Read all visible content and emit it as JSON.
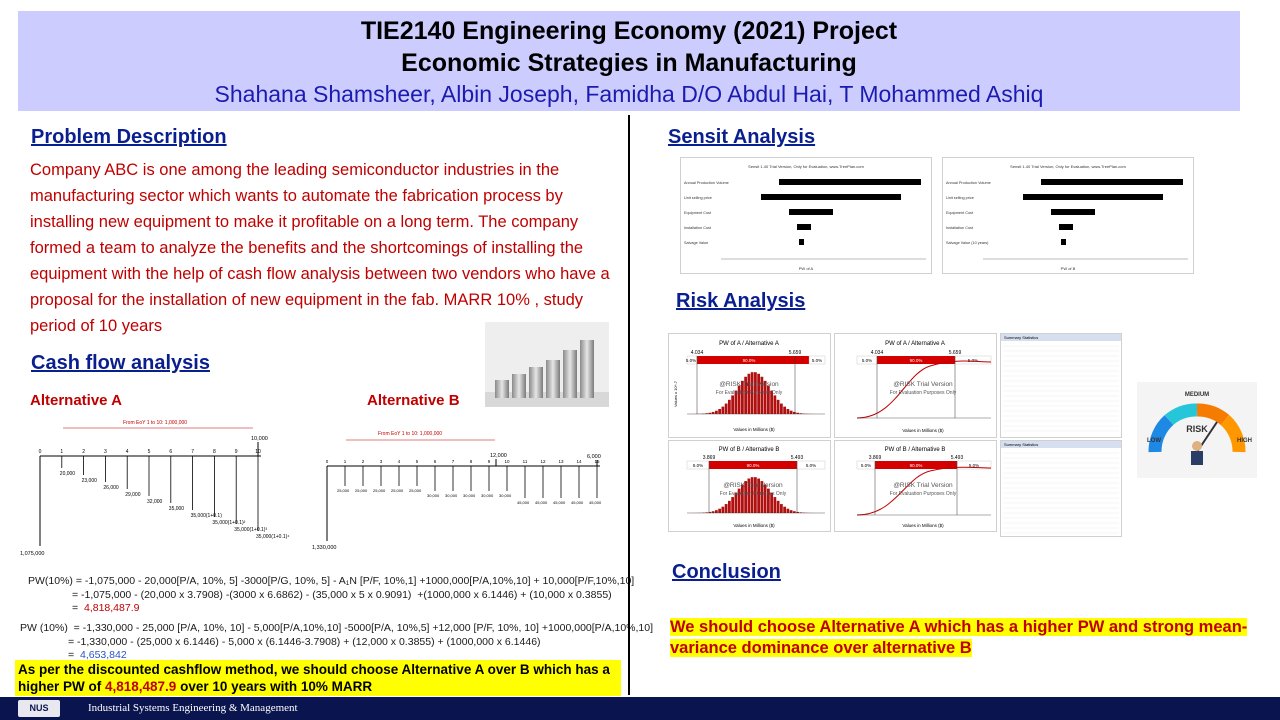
{
  "header": {
    "title_line1": "TIE2140 Engineering Economy (2021) Project",
    "title_line2": "Economic Strategies in Manufacturing",
    "authors": "Shahana Shamsheer, Albin Joseph, Famidha D/O Abdul Hai, T Mohammed Ashiq"
  },
  "problem": {
    "heading": "Problem Description",
    "text": "Company ABC is one among the leading semiconductor industries in the manufacturing sector which wants to automate the fabrication process by installing new equipment to make it profitable on a long term. The company formed a team to analyze the benefits and the shortcomings of installing the equipment with the help of cash flow analysis between two vendors who have a proposal for the installation of new equipment in the fab. MARR 10% , study period of 10 years"
  },
  "cashflow": {
    "heading": "Cash flow  analysis",
    "alt_a_label": "Alternative A",
    "alt_b_label": "Alternative B",
    "alt_a": {
      "banner": "From EoY 1 to 10: 1,000,000",
      "initial": "1,075,000",
      "end_value": "10,000",
      "periods": [
        "0",
        "1",
        "2",
        "3",
        "4",
        "5",
        "6",
        "7",
        "8",
        "9",
        "10"
      ],
      "costs": [
        "20,000",
        "23,000",
        "26,000",
        "29,000",
        "32,000",
        "35,000",
        "35,000(1+0.1)",
        "35,000(1+0.1)²",
        "35,000(1+0.1)³",
        "35,000(1+0.1)⁴"
      ]
    },
    "alt_b": {
      "banner": "From EoY 1 to 10: 1,000,000",
      "initial": "1,330,000",
      "end_value": "6,000",
      "mid_value": "12,000",
      "periods": [
        "0",
        "1",
        "2",
        "3",
        "4",
        "5",
        "6",
        "7",
        "8",
        "9",
        "10",
        "11",
        "12",
        "13",
        "14",
        "15"
      ],
      "costs": [
        "25,000",
        "25,000",
        "25,000",
        "25,000",
        "25,000",
        "30,000",
        "30,000",
        "30,000",
        "30,000",
        "30,000",
        "45,000",
        "45,000",
        "45,000",
        "45,000",
        "45,000"
      ]
    },
    "eq_a_line1": "PW(10%) = -1,075,000 - 20,000[P/A, 10%, 5] -3000[P/G, 10%, 5] - A₁N [P/F, 10%,1] +1000,000[P/A,10%,10] + 10,000[P/F,10%,10]",
    "eq_a_line2": "= -1,075,000 - (20,000 x 3.7908) -(3000 x 6.6862) - (35,000 x 5 x 0.9091)  +(1000,000 x 6.1446) + (10,000 x 0.3855)",
    "eq_a_result_prefix": "=",
    "eq_a_result": "4,818,487.9",
    "eq_b_line1": "PW (10%)  = -1,330,000 - 25,000 [P/A, 10%, 10] - 5,000[P/A,10%,10] -5000[P/A, 10%,5] +12,000 [P/F, 10%, 10] +1000,000[P/A,10%,10]",
    "eq_b_line2": "= -1,330,000 - (25,000 x 6.1446) - 5,000 x (6.1446-3.7908) + (12,000 x 0.3855) + (1000,000 x 6.1446)",
    "eq_b_result_prefix": "=",
    "eq_b_result": "4,653,842",
    "summary_part1": "As  per the discounted cashflow method, we should choose Alternative A over B which has a higher PW of ",
    "summary_value": "4,818,487.9",
    "summary_part2": " over 10 years with 10% MARR"
  },
  "sensit": {
    "heading": "Sensit Analysis",
    "chart_a": {
      "title": "Sensit 1.40 Trial Version, Only for Evaluation, www.TreePlan.com",
      "rows": [
        "Annual Production Volume",
        "Unit selling price",
        "Equipment Cost",
        "Installation Cost",
        "Salvage Value"
      ],
      "xlabel": "PW of A"
    },
    "chart_b": {
      "title": "Sensit 1.40 Trial Version, Only for Evaluation, www.TreePlan.com",
      "rows": [
        "Annual Production Volume",
        "Unit selling price",
        "Equipment Cost",
        "Installation Cost",
        "Salvage Value (10 years)"
      ],
      "xlabel": "PW of B"
    }
  },
  "risk": {
    "heading": "Risk Analysis",
    "watermark": "@RISK Trial Version",
    "watermark_sub": "For Evaluation Purposes Only",
    "xlabel": "Values in Millions ($)",
    "ylabel": "Values x 10^-7",
    "pw_a_title": "PW of A / Alternative A",
    "pw_a_left": "4.034",
    "pw_a_right": "5.659",
    "pw_b_title": "PW of B / Alternative B",
    "pw_b_left": "3.869",
    "pw_b_right": "5.493",
    "pct_left": "5.0%",
    "pct_mid": "90.0%",
    "pct_right": "5.0%",
    "stats_title": "Summary Statistics",
    "gauge": {
      "medium": "MEDIUM",
      "low": "LOW",
      "high": "HIGH",
      "center": "RISK"
    }
  },
  "conclusion": {
    "heading": "Conclusion",
    "text": "We should choose Alternative A which has a higher PW and  strong mean-variance dominance over alternative B"
  },
  "footer": {
    "logo": "NUS",
    "text": "Industrial Systems Engineering & Management"
  }
}
